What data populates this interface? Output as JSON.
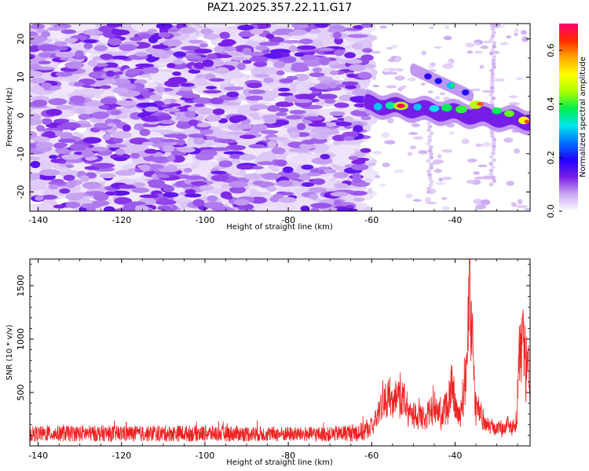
{
  "chart_data": [
    {
      "type": "heatmap",
      "title": "PAZ1.2025.357.22.11.G17",
      "xlabel": "Height of straight line (km)",
      "ylabel": "Frequency (Hz)",
      "xlim": [
        -142,
        -22
      ],
      "ylim": [
        -25,
        24
      ],
      "xticks": [
        -140,
        -120,
        -100,
        -80,
        -60,
        -40
      ],
      "yticks": [
        -20,
        -10,
        0,
        10,
        20
      ],
      "xtick_labels": [
        "-140",
        "-120",
        "-100",
        "-80",
        "-60",
        "-40"
      ],
      "ytick_labels": [
        "-20",
        "-10",
        "0",
        "10",
        "20"
      ],
      "colorbar": {
        "label": "Normalized spectral amplitude",
        "range": [
          0.0,
          0.7
        ],
        "ticks": [
          0.0,
          0.2,
          0.4,
          0.6
        ],
        "tick_labels": [
          "0.0",
          "0.2",
          "0.4",
          "0.6"
        ],
        "colormap": [
          "#ffffff",
          "#c9a6f2",
          "#7a1fe6",
          "#2200ff",
          "#0070ff",
          "#00e5ee",
          "#00ee50",
          "#aaff00",
          "#ffff00",
          "#ffaa00",
          "#ff2a00",
          "#ff0070"
        ]
      },
      "signal": {
        "description_noise_region": [
          -142,
          -61
        ],
        "main_band": {
          "start_km": -61,
          "end_km": -22,
          "freq_start": 3,
          "freq_end": -1.5,
          "peak_km": -53,
          "peak_value": 0.68
        },
        "secondary_band": {
          "start_km": -50,
          "end_km": -36,
          "freq_start": 12,
          "freq_end": 5
        }
      }
    },
    {
      "type": "line",
      "title": "",
      "xlabel": "Height of straight line (km)",
      "ylabel": "SNR (10 * v/v)",
      "xlim": [
        -142,
        -22
      ],
      "ylim": [
        0,
        1750
      ],
      "xticks": [
        -140,
        -120,
        -100,
        -80,
        -60,
        -40
      ],
      "yticks": [
        500,
        1000,
        1500
      ],
      "xtick_labels": [
        "-140",
        "-120",
        "-100",
        "-80",
        "-60",
        "-40"
      ],
      "ytick_labels": [
        "500",
        "1000",
        "1500"
      ],
      "series_color": "#ee2222",
      "envelope": [
        {
          "x": -142,
          "y": 120
        },
        {
          "x": -130,
          "y": 130
        },
        {
          "x": -115,
          "y": 125
        },
        {
          "x": -100,
          "y": 130
        },
        {
          "x": -85,
          "y": 120
        },
        {
          "x": -70,
          "y": 115
        },
        {
          "x": -62,
          "y": 160
        },
        {
          "x": -59,
          "y": 330
        },
        {
          "x": -57,
          "y": 700
        },
        {
          "x": -55,
          "y": 520
        },
        {
          "x": -53,
          "y": 750
        },
        {
          "x": -51,
          "y": 380
        },
        {
          "x": -49,
          "y": 450
        },
        {
          "x": -47,
          "y": 300
        },
        {
          "x": -45,
          "y": 620
        },
        {
          "x": -43,
          "y": 400
        },
        {
          "x": -41,
          "y": 760
        },
        {
          "x": -39,
          "y": 350
        },
        {
          "x": -37.5,
          "y": 980
        },
        {
          "x": -36.5,
          "y": 1750
        },
        {
          "x": -35,
          "y": 520
        },
        {
          "x": -33,
          "y": 300
        },
        {
          "x": -30,
          "y": 220
        },
        {
          "x": -27,
          "y": 250
        },
        {
          "x": -25.5,
          "y": 280
        },
        {
          "x": -24.5,
          "y": 1100
        },
        {
          "x": -23.5,
          "y": 1270
        },
        {
          "x": -22,
          "y": 700
        }
      ]
    }
  ]
}
